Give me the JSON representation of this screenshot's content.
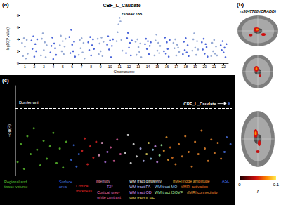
{
  "chart_data": [
    {
      "type": "scatter",
      "panel_label": "(a)",
      "title": "CBF_L_Caudate",
      "x_label": "Chromosome",
      "y_label": "-log10(P value)",
      "xlim": [
        0.5,
        22.5
      ],
      "xticks": [
        1,
        2,
        3,
        4,
        5,
        6,
        7,
        8,
        9,
        10,
        11,
        12,
        13,
        14,
        15,
        16,
        17,
        18,
        19,
        20,
        21,
        22
      ],
      "ylim": [
        0,
        8
      ],
      "yticks": [
        0,
        2,
        4,
        6,
        8
      ],
      "marker": "circle",
      "hline": {
        "value": 7.3,
        "color": "#e03030",
        "line_style": "solid"
      },
      "annotation": {
        "text": "rs3847788",
        "x": 11,
        "y": 7.6
      },
      "series": [
        {
          "color": "#7b93c9",
          "points": [
            [
              0.7,
              3.4
            ],
            [
              0.8,
              1.2
            ],
            [
              0.9,
              4.2
            ],
            [
              1,
              2.8
            ],
            [
              1.1,
              0.8
            ],
            [
              1.2,
              3.9
            ],
            [
              1.3,
              1.6
            ],
            [
              2.7,
              1.3
            ],
            [
              2.8,
              4.1
            ],
            [
              2.9,
              5.0
            ],
            [
              3,
              2.2
            ],
            [
              3.1,
              3.5
            ],
            [
              3.2,
              1.0
            ],
            [
              3.3,
              3.0
            ],
            [
              4.7,
              3.0
            ],
            [
              4.8,
              4.6
            ],
            [
              4.9,
              2.0
            ],
            [
              5,
              3.7
            ],
            [
              5.1,
              1.5
            ],
            [
              5.2,
              2.8
            ],
            [
              5.3,
              4.1
            ],
            [
              6.7,
              1.4
            ],
            [
              6.8,
              3.9
            ],
            [
              6.9,
              2.5
            ],
            [
              7,
              4.2
            ],
            [
              7.1,
              1.8
            ],
            [
              7.2,
              3.4
            ],
            [
              7.3,
              0.8
            ],
            [
              8.7,
              4.1
            ],
            [
              8.8,
              1.5
            ],
            [
              8.9,
              3.3
            ],
            [
              9,
              2.0
            ],
            [
              9.1,
              4.3
            ],
            [
              9.2,
              1.2
            ],
            [
              9.3,
              3.6
            ],
            [
              10.7,
              3.7
            ],
            [
              10.8,
              5.2
            ],
            [
              10.9,
              6.5
            ],
            [
              11,
              7.6
            ],
            [
              11.1,
              7.0
            ],
            [
              11.2,
              3.9
            ],
            [
              11.3,
              2.1
            ],
            [
              12.7,
              3.6
            ],
            [
              12.8,
              1.4
            ],
            [
              12.9,
              4.0
            ],
            [
              13,
              2.7
            ],
            [
              13.1,
              1.9
            ],
            [
              13.2,
              3.3
            ],
            [
              13.3,
              1.0
            ],
            [
              14.7,
              1.3
            ],
            [
              14.8,
              3.8
            ],
            [
              14.9,
              4.8
            ],
            [
              15,
              2.1
            ],
            [
              15.1,
              3.4
            ],
            [
              15.2,
              1.7
            ],
            [
              15.3,
              2.9
            ],
            [
              16.7,
              3.4
            ],
            [
              16.8,
              2.5
            ],
            [
              16.9,
              4.0
            ],
            [
              17,
              1.3
            ],
            [
              17.1,
              3.1
            ],
            [
              17.2,
              2.6
            ],
            [
              17.3,
              1.9
            ],
            [
              18.7,
              2.1
            ],
            [
              18.8,
              4.0
            ],
            [
              18.9,
              5.0
            ],
            [
              19,
              2.6
            ],
            [
              19.1,
              1.4
            ],
            [
              19.2,
              3.7
            ],
            [
              19.3,
              2.3
            ],
            [
              20.7,
              1.2
            ],
            [
              20.8,
              3.4
            ],
            [
              20.9,
              2.0
            ],
            [
              21,
              3.9
            ],
            [
              21.1,
              1.6
            ],
            [
              21.2,
              2.8
            ],
            [
              21.3,
              1.3
            ]
          ]
        },
        {
          "color": "#1d3fcf",
          "points": [
            [
              1.7,
              3.8
            ],
            [
              1.8,
              2.4
            ],
            [
              1.9,
              4.5
            ],
            [
              2,
              1.1
            ],
            [
              2.1,
              3.2
            ],
            [
              2.2,
              2.0
            ],
            [
              2.3,
              4.0
            ],
            [
              3.7,
              1.8
            ],
            [
              3.8,
              2.9
            ],
            [
              3.9,
              4.3
            ],
            [
              4,
              0.7
            ],
            [
              4.1,
              3.3
            ],
            [
              4.2,
              2.5
            ],
            [
              4.3,
              1.4
            ],
            [
              5.7,
              4.4
            ],
            [
              5.8,
              1.7
            ],
            [
              5.9,
              5.6
            ],
            [
              6,
              3.1
            ],
            [
              6.1,
              2.0
            ],
            [
              6.2,
              3.6
            ],
            [
              6.3,
              1.1
            ],
            [
              7.7,
              3.5
            ],
            [
              7.8,
              2.2
            ],
            [
              7.9,
              4.4
            ],
            [
              8,
              1.3
            ],
            [
              8.1,
              3.0
            ],
            [
              8.2,
              4.0
            ],
            [
              8.3,
              2.4
            ],
            [
              9.7,
              3.1
            ],
            [
              9.8,
              4.5
            ],
            [
              9.9,
              2.3
            ],
            [
              10,
              3.8
            ],
            [
              10.1,
              1.0
            ],
            [
              10.2,
              2.9
            ],
            [
              10.3,
              4.0
            ],
            [
              11.7,
              1.7
            ],
            [
              11.8,
              4.2
            ],
            [
              11.9,
              5.1
            ],
            [
              12,
              2.6
            ],
            [
              12.1,
              3.4
            ],
            [
              12.2,
              1.3
            ],
            [
              12.3,
              3.8
            ],
            [
              13.7,
              3.2
            ],
            [
              13.8,
              4.1
            ],
            [
              13.9,
              2.4
            ],
            [
              14,
              3.7
            ],
            [
              14.1,
              1.5
            ],
            [
              14.2,
              2.9
            ],
            [
              14.3,
              3.5
            ],
            [
              15.7,
              2.0
            ],
            [
              15.8,
              4.3
            ],
            [
              15.9,
              1.6
            ],
            [
              16,
              3.5
            ],
            [
              16.1,
              2.4
            ],
            [
              16.2,
              1.1
            ],
            [
              16.3,
              3.9
            ],
            [
              17.7,
              1.5
            ],
            [
              17.8,
              3.6
            ],
            [
              17.9,
              2.2
            ],
            [
              18,
              4.2
            ],
            [
              18.1,
              1.8
            ],
            [
              18.2,
              3.0
            ],
            [
              18.3,
              1.2
            ],
            [
              19.7,
              3.5
            ],
            [
              19.8,
              2.3
            ],
            [
              19.9,
              4.1
            ],
            [
              20,
              1.6
            ],
            [
              20.1,
              3.2
            ],
            [
              20.2,
              2.7
            ],
            [
              20.3,
              1.1
            ],
            [
              21.7,
              3.0
            ],
            [
              21.8,
              2.2
            ],
            [
              21.9,
              3.7
            ],
            [
              22,
              1.8
            ],
            [
              22.1,
              2.6
            ],
            [
              22.2,
              1.0
            ],
            [
              22.3,
              3.2
            ]
          ]
        }
      ]
    },
    {
      "type": "scatter",
      "panel_label": "(c)",
      "y_label": "-log(P)",
      "xlim": [
        0,
        100
      ],
      "ylim": [
        0,
        8
      ],
      "tick_labels": false,
      "marker": "circle",
      "hline": {
        "value": 6,
        "label": "Bonferroni",
        "color": "#ffffff",
        "line_style": "dashed"
      },
      "annotation": {
        "text": "CBF_L_Caudate",
        "x": 98.6,
        "y": 6.4
      },
      "series": [
        {
          "name": "Regional and\ntissue volume",
          "color": "#5cc22e",
          "points": [
            [
              1,
              1.2
            ],
            [
              2.5,
              2.8
            ],
            [
              4,
              0.6
            ],
            [
              5.5,
              3.5
            ],
            [
              7,
              1.9
            ],
            [
              8.5,
              4.2
            ],
            [
              10,
              2.3
            ],
            [
              11.5,
              0.9
            ],
            [
              13,
              3.1
            ],
            [
              14.5,
              1.5
            ],
            [
              16,
              2.6
            ],
            [
              17.5,
              3.8
            ],
            [
              19,
              1.1
            ],
            [
              20.5,
              2.4
            ],
            [
              22,
              0.7
            ],
            [
              23.5,
              3.0
            ]
          ]
        },
        {
          "name": "Surface\narea",
          "color": "#3d6ee6",
          "points": [
            [
              25.8,
              1.4
            ],
            [
              27,
              2.7
            ],
            [
              28.2,
              0.8
            ],
            [
              29.3,
              1.9
            ]
          ]
        },
        {
          "name": "Cortical\nthickness",
          "color": "#e32626",
          "points": [
            [
              30.8,
              2.2
            ],
            [
              32,
              3.3
            ],
            [
              33.3,
              1.0
            ],
            [
              34.6,
              2.6
            ],
            [
              36,
              1.6
            ],
            [
              37.3,
              3.0
            ]
          ]
        },
        {
          "name": "Intensity",
          "color": "#e8a0c8",
          "points": [
            [
              38.6,
              1.8
            ],
            [
              40,
              2.9
            ]
          ]
        },
        {
          "name": "T2*",
          "color": "#b070e0",
          "points": [
            [
              41.5,
              1.2
            ],
            [
              42.5,
              2.1
            ]
          ]
        },
        {
          "name": "Cortical grey-\nwhite contrast",
          "color": "#e060a0",
          "points": [
            [
              44,
              2.5
            ],
            [
              45.5,
              1.3
            ],
            [
              47,
              3.2
            ],
            [
              48.5,
              1.9
            ]
          ]
        },
        {
          "name": "WM tract diffusivity",
          "color": "#f0f0f0",
          "points": [
            [
              50.8,
              2.0
            ],
            [
              52,
              3.6
            ],
            [
              53.3,
              1.1
            ],
            [
              54.6,
              2.8
            ],
            [
              56,
              1.7
            ]
          ]
        },
        {
          "name": "WM tract FA",
          "color": "#c0c0ff",
          "points": [
            [
              57.8,
              2.4
            ],
            [
              59.2,
              1.3
            ]
          ]
        },
        {
          "name": "WM tract MO",
          "color": "#9ad0f0",
          "points": [
            [
              62.6,
              1.5
            ],
            [
              63.5,
              2.3
            ]
          ]
        },
        {
          "name": "WM tract OD",
          "color": "#d090f0",
          "points": [
            [
              64.6,
              2.6
            ],
            [
              65.5,
              1.2
            ]
          ]
        },
        {
          "name": "WM tract ISOVF",
          "color": "#a0f0a0",
          "points": [
            [
              66.6,
              1.8
            ],
            [
              67.5,
              2.7
            ]
          ]
        },
        {
          "name": "WM tract ICVF",
          "color": "#e8d860",
          "points": [
            [
              60.6,
              1.9
            ],
            [
              61.5,
              2.9
            ]
          ]
        },
        {
          "name": "rfMRI node amplitude",
          "color": "#f5a030",
          "points": [
            [
              68.6,
              2.2
            ],
            [
              69.8,
              3.4
            ],
            [
              70.6,
              1.4
            ]
          ]
        },
        {
          "name": "tfMRI activation",
          "color": "#e87820",
          "points": [
            [
              71.5,
              2.5
            ],
            [
              72.5,
              1.6
            ]
          ]
        },
        {
          "name": "rfMRI connectivity",
          "color": "#f08c30",
          "points": [
            [
              74,
              1.0
            ],
            [
              75.5,
              2.8
            ],
            [
              77,
              1.7
            ],
            [
              78.5,
              3.5
            ],
            [
              80,
              2.1
            ],
            [
              81.5,
              0.8
            ],
            [
              83,
              3.0
            ],
            [
              84.5,
              1.9
            ],
            [
              86,
              4.0
            ],
            [
              87.5,
              2.4
            ],
            [
              89,
              1.3
            ],
            [
              90.5,
              3.2
            ],
            [
              92,
              2.0
            ],
            [
              93.5,
              2.9
            ],
            [
              95,
              1.5
            ]
          ]
        },
        {
          "name": "ASL",
          "color": "#4a70e0",
          "points": [
            [
              96.6,
              2.1
            ],
            [
              97.6,
              3.4
            ],
            [
              98.6,
              6.4
            ],
            [
              99.4,
              2.8
            ]
          ]
        }
      ]
    }
  ],
  "brain_panel": {
    "panel_label": "(b)",
    "title": "rs3847788 (CRADD)",
    "colorbar": {
      "range": [
        0,
        0.1
      ],
      "ticks": [
        0,
        0.1
      ],
      "label": "r"
    }
  }
}
